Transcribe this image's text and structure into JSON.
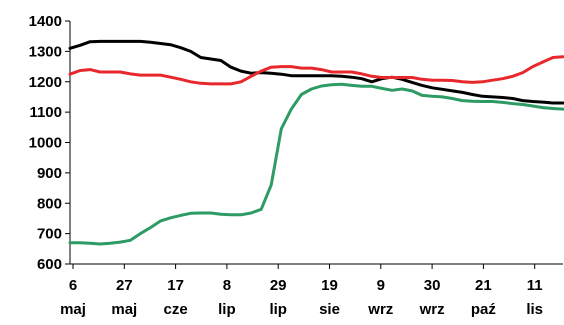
{
  "chart_data": {
    "type": "line",
    "title": "",
    "xlabel": "",
    "ylabel": "",
    "ylim": [
      600,
      1400
    ],
    "yticks": [
      600,
      700,
      800,
      900,
      1000,
      1100,
      1200,
      1300,
      1400
    ],
    "grid": false,
    "legend": "none",
    "x_tick_labels": [
      [
        "6",
        "maj"
      ],
      [
        "27",
        "maj"
      ],
      [
        "17",
        "cze"
      ],
      [
        "8",
        "lip"
      ],
      [
        "29",
        "lip"
      ],
      [
        "19",
        "sie"
      ],
      [
        "9",
        "wrz"
      ],
      [
        "30",
        "wrz"
      ],
      [
        "21",
        "paź"
      ],
      [
        "11",
        "lis"
      ]
    ],
    "x_points": 50,
    "series": [
      {
        "color": "#000000",
        "values": [
          1310,
          1320,
          1332,
          1333,
          1333,
          1333,
          1333,
          1333,
          1330,
          1326,
          1322,
          1312,
          1300,
          1280,
          1275,
          1270,
          1248,
          1235,
          1228,
          1230,
          1228,
          1225,
          1220,
          1220,
          1220,
          1220,
          1220,
          1218,
          1215,
          1210,
          1200,
          1210,
          1215,
          1208,
          1198,
          1188,
          1180,
          1175,
          1170,
          1165,
          1158,
          1152,
          1150,
          1148,
          1145,
          1138,
          1135,
          1133,
          1130,
          1130
        ]
      },
      {
        "color": "#e8282d",
        "values": [
          1225,
          1237,
          1240,
          1232,
          1232,
          1232,
          1226,
          1222,
          1222,
          1222,
          1215,
          1208,
          1200,
          1195,
          1193,
          1193,
          1193,
          1200,
          1218,
          1235,
          1248,
          1250,
          1250,
          1245,
          1245,
          1240,
          1232,
          1232,
          1232,
          1226,
          1218,
          1214,
          1214,
          1214,
          1214,
          1208,
          1205,
          1205,
          1204,
          1200,
          1198,
          1200,
          1205,
          1210,
          1218,
          1230,
          1250,
          1265,
          1280,
          1282
        ]
      },
      {
        "color": "#2e9b64",
        "values": [
          670,
          670,
          668,
          666,
          668,
          672,
          678,
          700,
          720,
          742,
          752,
          760,
          767,
          768,
          768,
          764,
          762,
          762,
          768,
          780,
          860,
          1045,
          1110,
          1158,
          1176,
          1186,
          1190,
          1192,
          1188,
          1185,
          1185,
          1178,
          1172,
          1176,
          1170,
          1155,
          1152,
          1150,
          1145,
          1138,
          1136,
          1135,
          1135,
          1132,
          1128,
          1125,
          1120,
          1115,
          1112,
          1110
        ]
      }
    ]
  }
}
